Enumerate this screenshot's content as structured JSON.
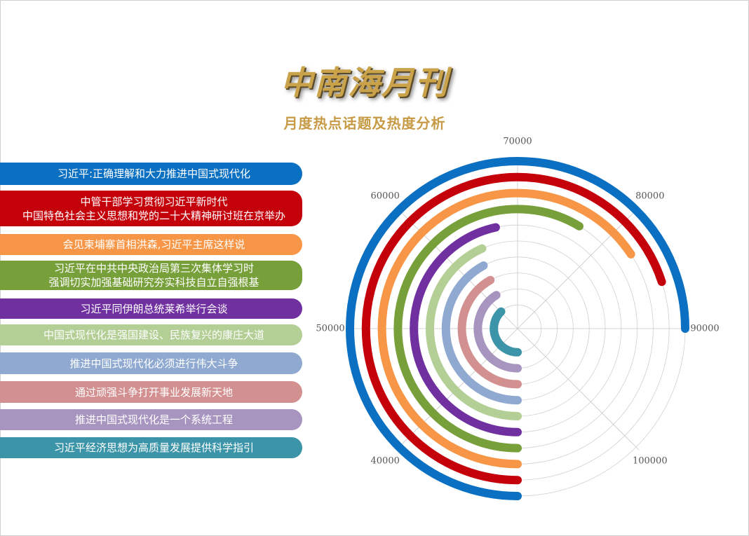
{
  "title": "中南海月刊",
  "subtitle": "月度热点话题及热度分析",
  "chart_data": {
    "type": "radial_bar",
    "categories": [
      "习近平:正确理解和大力推进中国式现代化",
      "中管干部学习贯彻习近平新时代\n中国特色社会主义思想和党的二十大精神研讨班在京举办",
      "会见柬埔寨首相洪森,习近平主席这样说",
      "习近平在中共中央政治局第三次集体学习时\n强调切实加强基础研究夯实科技自立自强根基",
      "习近平同伊朗总统莱希举行会谈",
      "中国式现代化是强国建设、民族复兴的康庄大道",
      "推进中国式现代化必须进行伟大斗争",
      "通过顽强斗争打开事业发展新天地",
      "推进中国式现代化是一个系统工程",
      "习近平经济思想为高质量发展提供科学指引"
    ],
    "values": [
      90000,
      86000,
      82600,
      76900,
      67300,
      64700,
      63700,
      63500,
      62800,
      60200
    ],
    "colors": [
      "#0b70c2",
      "#c4000b",
      "#f79646",
      "#77a03a",
      "#7030a0",
      "#b3cf95",
      "#8fa9d0",
      "#d39090",
      "#a795c0",
      "#3c94a8"
    ],
    "xlim": [
      30000,
      110000
    ],
    "xticks": [
      40000,
      50000,
      60000,
      70000,
      80000,
      90000,
      100000
    ],
    "grid": true
  }
}
